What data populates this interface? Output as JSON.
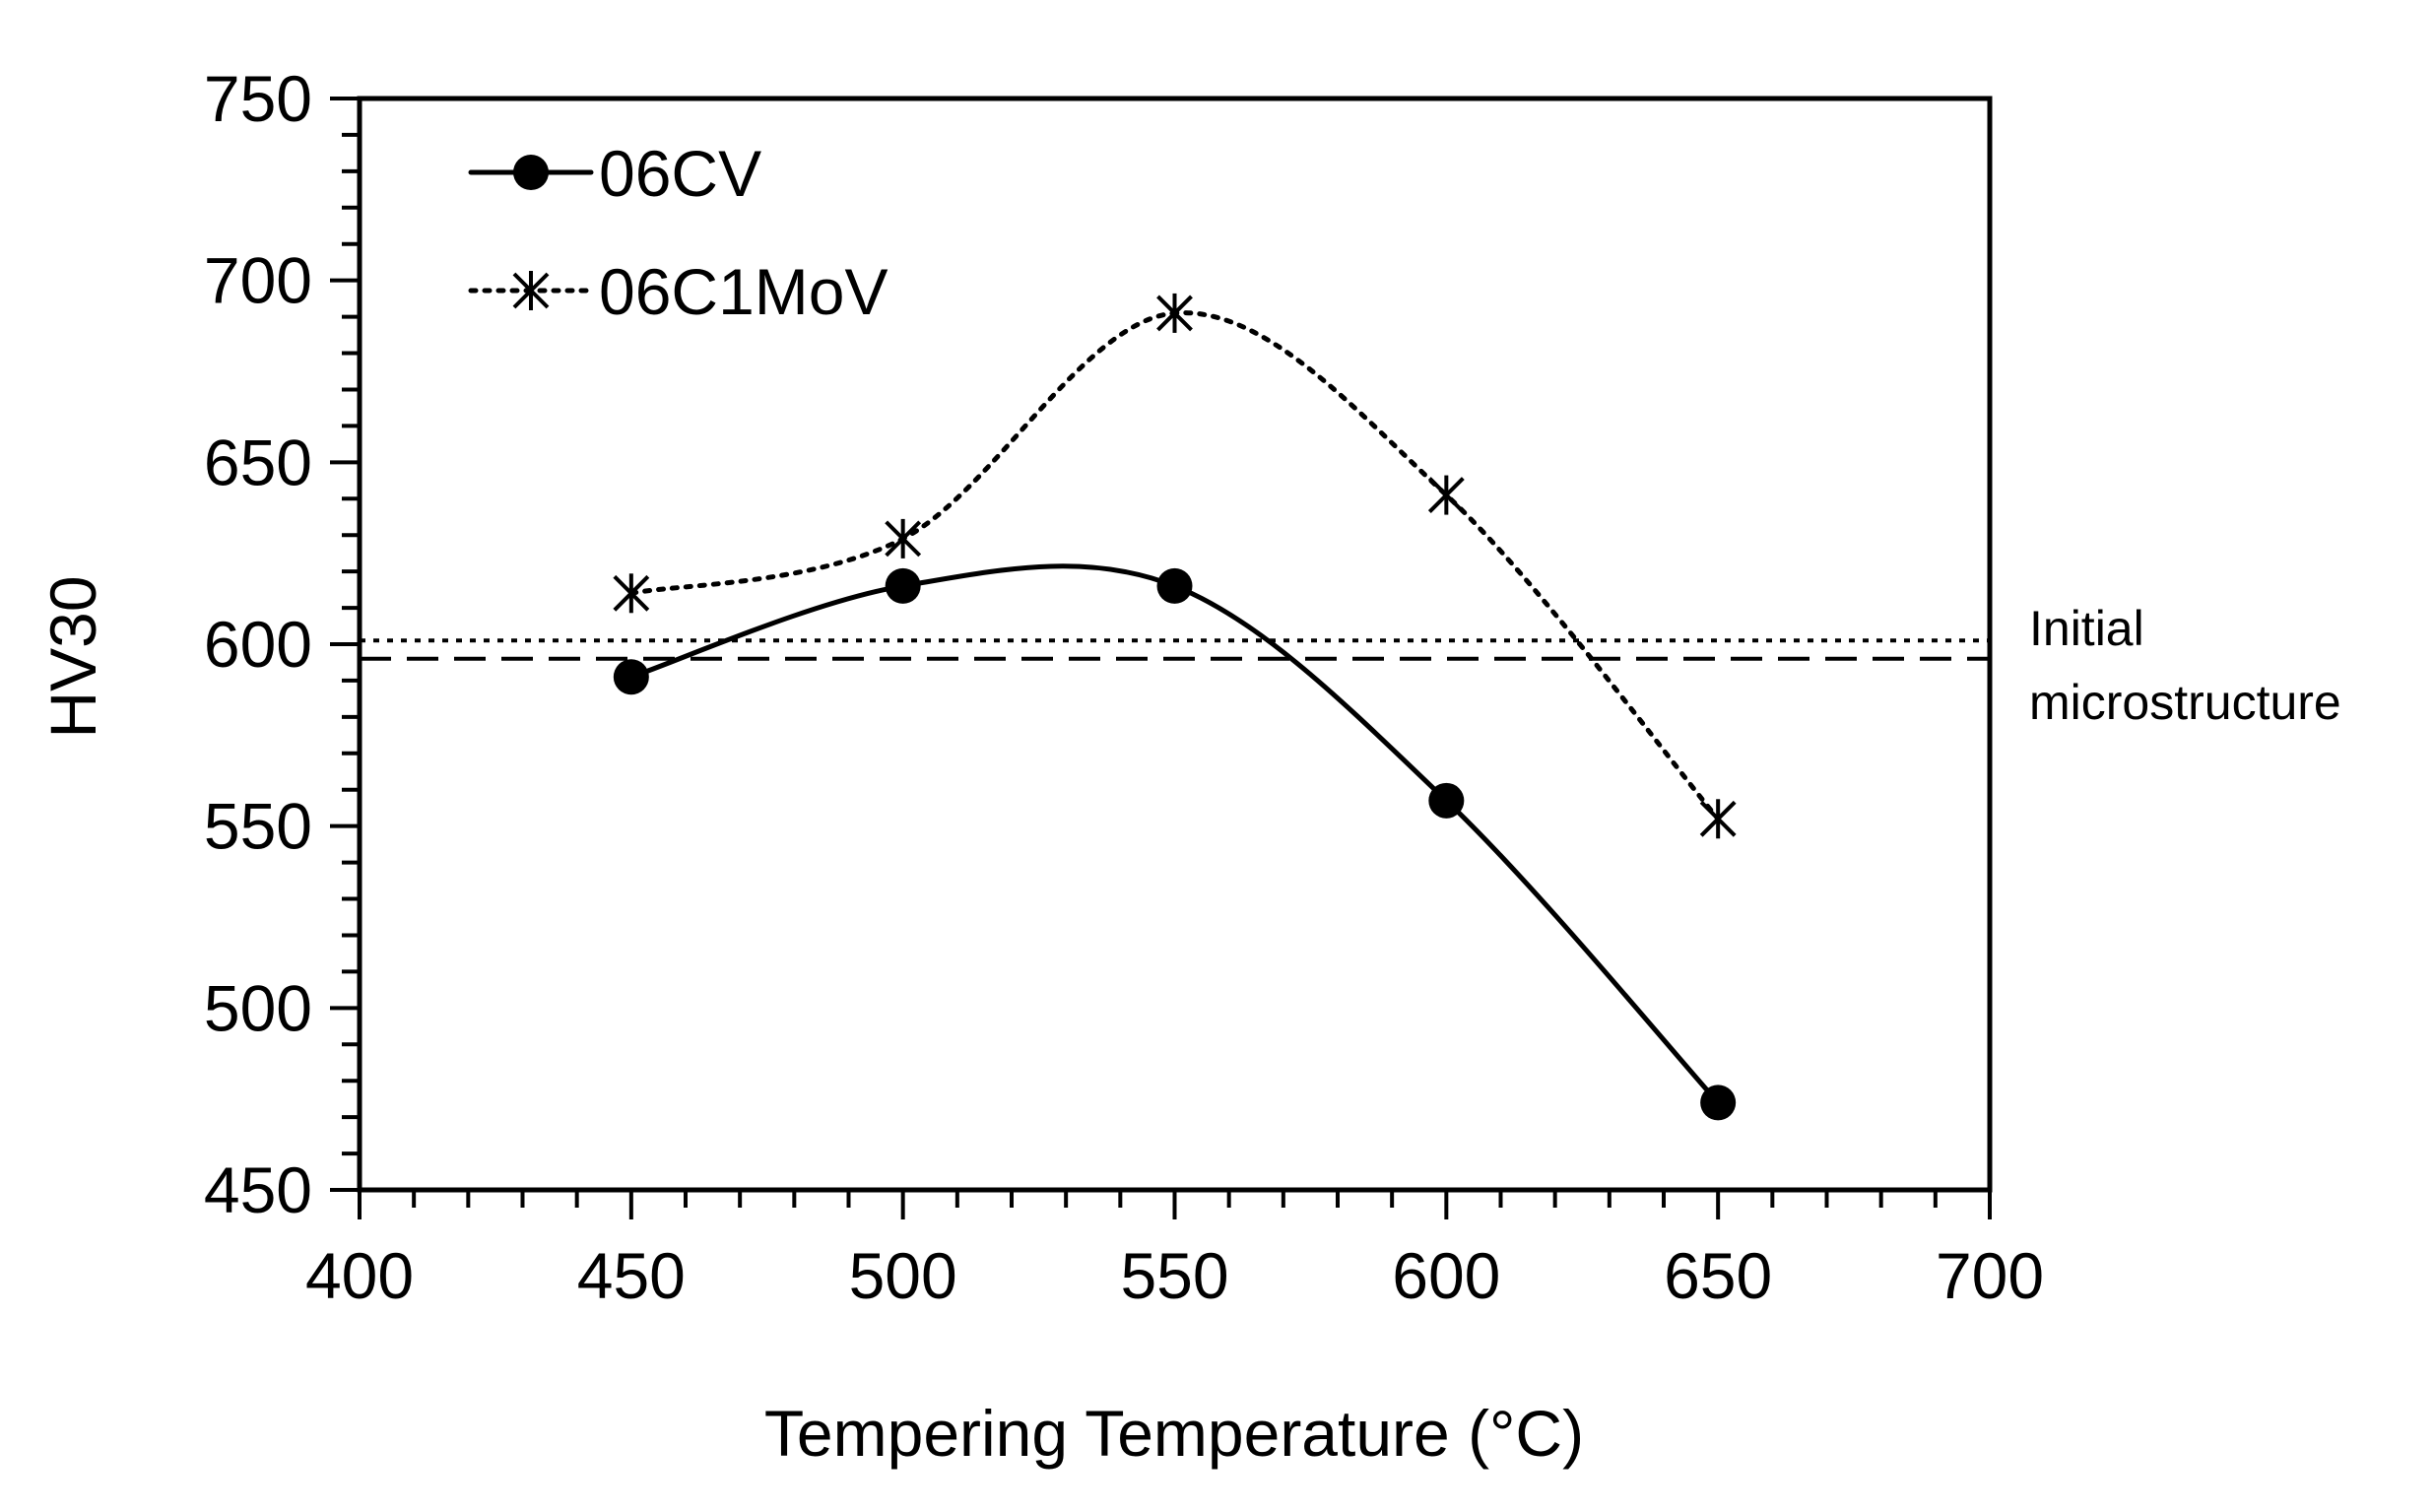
{
  "chart_data": {
    "type": "line",
    "title": "",
    "xlabel": "Tempering Temperature (°C)",
    "ylabel": "HV30",
    "xlim": [
      400,
      700
    ],
    "ylim": [
      450,
      750
    ],
    "x_ticks": [
      400,
      450,
      500,
      550,
      600,
      650,
      700
    ],
    "y_ticks": [
      450,
      500,
      550,
      600,
      650,
      700,
      750
    ],
    "x_tick_labels": [
      "400",
      "450",
      "500",
      "550",
      "600",
      "650",
      "700"
    ],
    "y_tick_labels": [
      "450",
      "500",
      "550",
      "600",
      "650",
      "700",
      "750"
    ],
    "x_minor_step": 10,
    "y_minor_step": 10,
    "grid": false,
    "legend_position": "top-left",
    "series": [
      {
        "name": "06CV",
        "marker": "circle",
        "line_style": "solid",
        "color": "#000000",
        "x": [
          450,
          500,
          550,
          600,
          650
        ],
        "y": [
          591,
          616,
          616,
          557,
          474
        ]
      },
      {
        "name": "06C1MoV",
        "marker": "asterisk",
        "line_style": "dotted",
        "color": "#000000",
        "x": [
          450,
          500,
          550,
          600,
          650
        ],
        "y": [
          614,
          629,
          691,
          641,
          552
        ]
      }
    ],
    "reference_lines": [
      {
        "series": "06CV",
        "y": 596,
        "line_style": "dashed"
      },
      {
        "series": "06C1MoV",
        "y": 601,
        "line_style": "dotted"
      }
    ],
    "annotation": {
      "line1": "Initial",
      "line2": "microstructure"
    }
  }
}
